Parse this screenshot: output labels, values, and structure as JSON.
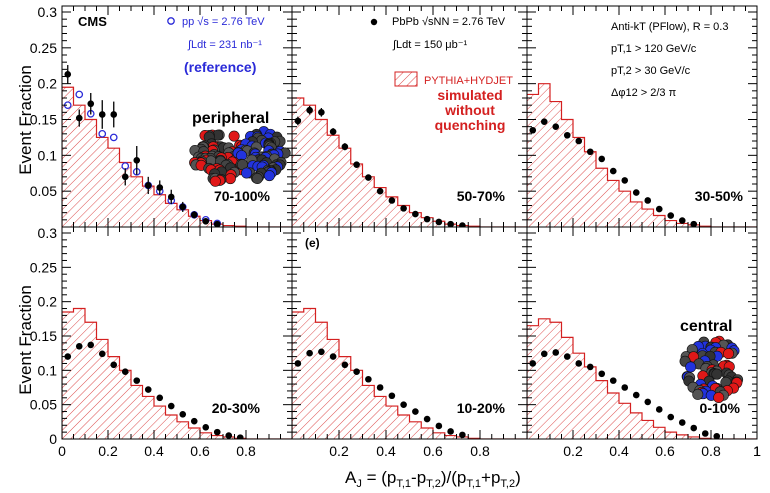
{
  "figure": {
    "x_axis_title": "A",
    "x_axis_title_sub": "J",
    "x_axis_title_rest": " = (p",
    "y_axis_title": "Event Fraction",
    "experiment": "CMS",
    "reference_pp": "pp √s = 2.76 TeV",
    "reference_lumi": "∫Ldt = 231 nb⁻¹",
    "reference_tag": "(reference)",
    "pbpb_label": "PbPb √sNN = 2.76 TeV",
    "pbpb_lumi": "∫Ldt = 150 μb⁻¹",
    "mc_label": "PYTHIA+HYDJET",
    "mc_note": [
      "simulated",
      "without",
      "quenching"
    ],
    "cuts": [
      "Anti-kT (PFlow), R = 0.3",
      "pT,1 > 120 GeV/c",
      "pT,2 > 30 GeV/c",
      "Δφ12 > 2/3 π"
    ],
    "peripheral_label": "peripheral",
    "central_label": "central",
    "panel_letter": "(e)",
    "x_ticks": [
      "0",
      "0.2",
      "0.4",
      "0.6",
      "0.8",
      "1"
    ],
    "y_ticks_top": [
      "0.05",
      "0.1",
      "0.15",
      "0.2",
      "0.25",
      "0.3"
    ],
    "y_ticks_bottom": [
      "0",
      "0.05",
      "0.1",
      "0.15",
      "0.2",
      "0.25",
      "0.3"
    ],
    "colors": {
      "data": "#000000",
      "pp": "#2a2ad8",
      "mc": "#d42020",
      "note": "#d42020"
    }
  },
  "chart_data": [
    {
      "type": "scatter",
      "panel": "top-left",
      "centrality": "70-100%",
      "xlim": [
        0,
        1
      ],
      "ylim": [
        0,
        0.3
      ],
      "mc_hist": [
        0.195,
        0.17,
        0.15,
        0.125,
        0.11,
        0.09,
        0.07,
        0.057,
        0.045,
        0.033,
        0.024,
        0.015,
        0.009,
        0.004,
        0.002,
        0.001,
        0,
        0,
        0,
        0
      ],
      "pbpb_x": [
        0.025,
        0.075,
        0.125,
        0.175,
        0.225,
        0.275,
        0.325,
        0.375,
        0.425,
        0.475,
        0.525,
        0.575,
        0.625,
        0.675
      ],
      "pbpb_y": [
        0.213,
        0.152,
        0.172,
        0.157,
        0.157,
        0.07,
        0.093,
        0.058,
        0.055,
        0.042,
        0.028,
        0.017,
        0.008,
        0.004
      ],
      "pbpb_err": [
        0.013,
        0.012,
        0.015,
        0.02,
        0.018,
        0.012,
        0.02,
        0.012,
        0.01,
        0.01,
        0.007,
        0.005,
        0.003,
        0.002
      ],
      "pp_x": [
        0.025,
        0.075,
        0.125,
        0.175,
        0.225,
        0.275,
        0.325,
        0.375,
        0.425,
        0.475,
        0.525,
        0.575,
        0.625,
        0.675
      ],
      "pp_y": [
        0.17,
        0.185,
        0.158,
        0.13,
        0.125,
        0.085,
        0.077,
        0.058,
        0.05,
        0.037,
        0.028,
        0.017,
        0.01,
        0.005
      ]
    },
    {
      "type": "scatter",
      "panel": "top-middle",
      "centrality": "50-70%",
      "xlim": [
        0,
        1
      ],
      "ylim": [
        0,
        0.3
      ],
      "mc_hist": [
        0.18,
        0.17,
        0.15,
        0.128,
        0.11,
        0.088,
        0.07,
        0.055,
        0.042,
        0.03,
        0.02,
        0.013,
        0.008,
        0.004,
        0.002,
        0.001,
        0,
        0,
        0,
        0
      ],
      "pbpb_x": [
        0.025,
        0.075,
        0.125,
        0.175,
        0.225,
        0.275,
        0.325,
        0.375,
        0.425,
        0.475,
        0.525,
        0.575,
        0.625,
        0.675,
        0.725
      ],
      "pbpb_y": [
        0.148,
        0.163,
        0.16,
        0.133,
        0.112,
        0.087,
        0.069,
        0.05,
        0.037,
        0.026,
        0.018,
        0.011,
        0.007,
        0.004,
        0.002
      ],
      "pbpb_err": [
        0.006,
        0.006,
        0.006,
        0.005,
        0.005,
        0.004,
        0.004,
        0.003,
        0.003,
        0.002,
        0.002,
        0.001,
        0.001,
        0.001,
        0.001
      ]
    },
    {
      "type": "scatter",
      "panel": "top-right",
      "centrality": "30-50%",
      "xlim": [
        0,
        1
      ],
      "ylim": [
        0,
        0.3
      ],
      "mc_hist": [
        0.185,
        0.2,
        0.175,
        0.15,
        0.125,
        0.105,
        0.082,
        0.065,
        0.05,
        0.035,
        0.025,
        0.016,
        0.009,
        0.005,
        0.003,
        0.001,
        0,
        0,
        0,
        0
      ],
      "pbpb_x": [
        0.025,
        0.075,
        0.125,
        0.175,
        0.225,
        0.275,
        0.325,
        0.375,
        0.425,
        0.475,
        0.525,
        0.575,
        0.625,
        0.675,
        0.725
      ],
      "pbpb_y": [
        0.135,
        0.147,
        0.14,
        0.128,
        0.12,
        0.105,
        0.095,
        0.078,
        0.065,
        0.048,
        0.037,
        0.025,
        0.016,
        0.009,
        0.004
      ],
      "pbpb_err": [
        0.003,
        0.003,
        0.003,
        0.003,
        0.003,
        0.003,
        0.002,
        0.002,
        0.002,
        0.002,
        0.002,
        0.001,
        0.001,
        0.001,
        0.001
      ]
    },
    {
      "type": "scatter",
      "panel": "bottom-left",
      "centrality": "20-30%",
      "xlim": [
        0,
        1
      ],
      "ylim": [
        0,
        0.3
      ],
      "mc_hist": [
        0.185,
        0.19,
        0.17,
        0.145,
        0.12,
        0.1,
        0.078,
        0.062,
        0.048,
        0.035,
        0.025,
        0.016,
        0.009,
        0.005,
        0.003,
        0.001,
        0,
        0,
        0,
        0
      ],
      "pbpb_x": [
        0.025,
        0.075,
        0.125,
        0.175,
        0.225,
        0.275,
        0.325,
        0.375,
        0.425,
        0.475,
        0.525,
        0.575,
        0.625,
        0.675,
        0.725,
        0.775
      ],
      "pbpb_y": [
        0.12,
        0.135,
        0.137,
        0.124,
        0.108,
        0.098,
        0.085,
        0.072,
        0.06,
        0.048,
        0.036,
        0.026,
        0.017,
        0.01,
        0.005,
        0.002
      ],
      "pbpb_err": [
        0.003,
        0.003,
        0.003,
        0.003,
        0.003,
        0.003,
        0.002,
        0.002,
        0.002,
        0.002,
        0.002,
        0.001,
        0.001,
        0.001,
        0.001,
        0.001
      ]
    },
    {
      "type": "scatter",
      "panel": "bottom-middle",
      "centrality": "10-20%",
      "xlim": [
        0,
        1
      ],
      "ylim": [
        0,
        0.3
      ],
      "mc_hist": [
        0.185,
        0.19,
        0.17,
        0.145,
        0.12,
        0.1,
        0.078,
        0.062,
        0.048,
        0.035,
        0.025,
        0.016,
        0.009,
        0.005,
        0.003,
        0.001,
        0,
        0,
        0,
        0
      ],
      "pbpb_x": [
        0.025,
        0.075,
        0.125,
        0.175,
        0.225,
        0.275,
        0.325,
        0.375,
        0.425,
        0.475,
        0.525,
        0.575,
        0.625,
        0.675,
        0.725
      ],
      "pbpb_y": [
        0.11,
        0.125,
        0.127,
        0.12,
        0.108,
        0.098,
        0.087,
        0.075,
        0.063,
        0.05,
        0.04,
        0.029,
        0.019,
        0.011,
        0.006
      ],
      "pbpb_err": [
        0.003,
        0.003,
        0.003,
        0.003,
        0.003,
        0.003,
        0.002,
        0.002,
        0.002,
        0.002,
        0.002,
        0.001,
        0.001,
        0.001,
        0.001
      ]
    },
    {
      "type": "scatter",
      "panel": "bottom-right",
      "centrality": "0-10%",
      "xlim": [
        0,
        1
      ],
      "ylim": [
        0,
        0.3
      ],
      "mc_hist": [
        0.165,
        0.175,
        0.17,
        0.148,
        0.125,
        0.105,
        0.085,
        0.067,
        0.052,
        0.038,
        0.027,
        0.017,
        0.01,
        0.006,
        0.003,
        0.001,
        0,
        0,
        0,
        0
      ],
      "pbpb_x": [
        0.025,
        0.075,
        0.125,
        0.175,
        0.225,
        0.275,
        0.325,
        0.375,
        0.425,
        0.475,
        0.525,
        0.575,
        0.625,
        0.675,
        0.725,
        0.775,
        0.825
      ],
      "pbpb_y": [
        0.11,
        0.124,
        0.126,
        0.12,
        0.11,
        0.105,
        0.095,
        0.085,
        0.075,
        0.064,
        0.054,
        0.043,
        0.032,
        0.024,
        0.016,
        0.008,
        0.004
      ],
      "pbpb_err": [
        0.003,
        0.003,
        0.003,
        0.003,
        0.003,
        0.003,
        0.003,
        0.002,
        0.002,
        0.002,
        0.002,
        0.002,
        0.001,
        0.001,
        0.001,
        0.001,
        0.001
      ]
    }
  ]
}
